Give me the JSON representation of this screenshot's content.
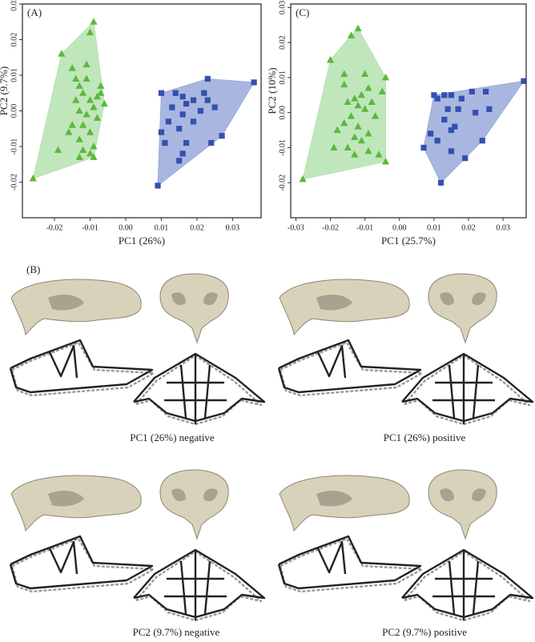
{
  "chart_data": [
    {
      "type": "scatter",
      "label": "(A)",
      "xlabel": "PC1 (26%)",
      "ylabel": "PC2 (9.7%)",
      "xlim": [
        -0.029,
        0.038
      ],
      "ylim": [
        -0.03,
        0.03
      ],
      "xticks": [
        -0.02,
        -0.01,
        {
          "value": 0,
          "label": "0.00"
        },
        0.01,
        0.02,
        0.03
      ],
      "yticks": [
        -0.02,
        -0.01,
        {
          "value": 0,
          "label": "0.00"
        },
        0.01,
        0.02,
        0.03
      ],
      "series": [
        {
          "color": "#5cb83d",
          "hull_color": "#b5e2b0",
          "marker": "triangle",
          "x": [
            -0.026,
            -0.018,
            -0.009,
            -0.01,
            -0.015,
            -0.013,
            -0.011,
            -0.007,
            -0.006,
            -0.008,
            -0.012,
            -0.014,
            -0.01,
            -0.009,
            -0.013,
            -0.011,
            -0.008,
            -0.012,
            -0.015,
            -0.01,
            -0.013,
            -0.016,
            -0.009,
            -0.012,
            -0.019,
            -0.013,
            -0.01,
            -0.009,
            -0.007,
            -0.014,
            -0.011
          ],
          "y": [
            -0.019,
            0.016,
            0.025,
            0.022,
            0.012,
            0.007,
            0.009,
            0.007,
            0.002,
            0.004,
            0.005,
            0.003,
            0.003,
            0.001,
            0.0,
            -0.001,
            -0.002,
            -0.004,
            -0.004,
            -0.006,
            -0.008,
            -0.006,
            -0.01,
            -0.011,
            -0.011,
            -0.013,
            -0.012,
            -0.013,
            0.005,
            0.009,
            0.013
          ]
        },
        {
          "color": "#3450b0",
          "hull_color": "#9aaadb",
          "marker": "square",
          "x": [
            0.009,
            0.01,
            0.014,
            0.016,
            0.013,
            0.017,
            0.019,
            0.022,
            0.023,
            0.023,
            0.036,
            0.025,
            0.021,
            0.016,
            0.012,
            0.015,
            0.019,
            0.01,
            0.011,
            0.017,
            0.016,
            0.024,
            0.027,
            0.015
          ],
          "y": [
            -0.021,
            0.005,
            0.005,
            0.004,
            0.001,
            0.002,
            0.003,
            0.005,
            0.003,
            0.009,
            0.008,
            0.001,
            0.0,
            -0.001,
            -0.003,
            -0.005,
            -0.003,
            -0.006,
            -0.009,
            -0.009,
            -0.012,
            -0.009,
            -0.007,
            -0.014
          ]
        }
      ]
    },
    {
      "type": "scatter",
      "label": "(C)",
      "xlabel": "PC1 (25.7%)",
      "ylabel": "PC2 (10%)",
      "xlim": [
        -0.0315,
        0.0367
      ],
      "ylim": [
        -0.03,
        0.031
      ],
      "xticks": [
        -0.03,
        -0.02,
        -0.01,
        {
          "value": 0,
          "label": "0.00"
        },
        0.01,
        0.02,
        0.03
      ],
      "yticks": [
        -0.02,
        -0.01,
        {
          "value": 0,
          "label": "0.00"
        },
        0.01,
        0.02,
        0.03
      ],
      "series": [
        {
          "color": "#5cb83d",
          "hull_color": "#b5e2b0",
          "marker": "triangle",
          "x": [
            -0.028,
            -0.02,
            -0.012,
            -0.014,
            -0.004,
            -0.005,
            -0.016,
            -0.013,
            -0.011,
            -0.009,
            -0.015,
            -0.012,
            -0.008,
            -0.01,
            -0.014,
            -0.007,
            -0.016,
            -0.012,
            -0.009,
            -0.013,
            -0.018,
            -0.011,
            -0.015,
            -0.019,
            -0.013,
            -0.009,
            -0.004,
            -0.006,
            -0.016,
            -0.01
          ],
          "y": [
            -0.019,
            0.015,
            0.024,
            0.022,
            0.01,
            0.006,
            0.008,
            0.004,
            0.005,
            0.007,
            0.003,
            0.002,
            0.003,
            0.001,
            -0.001,
            -0.001,
            -0.003,
            -0.004,
            -0.006,
            -0.007,
            -0.005,
            -0.008,
            -0.01,
            -0.01,
            -0.012,
            -0.011,
            -0.014,
            -0.012,
            0.011,
            0.011
          ]
        },
        {
          "color": "#3450b0",
          "hull_color": "#9aaadb",
          "marker": "square",
          "x": [
            0.007,
            0.01,
            0.011,
            0.013,
            0.015,
            0.018,
            0.021,
            0.025,
            0.036,
            0.026,
            0.022,
            0.017,
            0.014,
            0.013,
            0.016,
            0.009,
            0.011,
            0.015,
            0.019,
            0.012,
            0.024,
            0.015
          ],
          "y": [
            -0.01,
            0.005,
            0.004,
            0.005,
            0.005,
            0.004,
            0.006,
            0.006,
            0.009,
            0.001,
            0.0,
            0.001,
            0.001,
            -0.002,
            -0.004,
            -0.006,
            -0.008,
            -0.011,
            -0.013,
            -0.02,
            -0.008,
            -0.005
          ]
        }
      ]
    }
  ],
  "panel_b": {
    "label": "(B)",
    "captions": [
      "PC1 (26%) negative",
      "PC1 (26%) positive",
      "PC2 (9.7%) negative",
      "PC2 (9.7%) positive"
    ]
  }
}
